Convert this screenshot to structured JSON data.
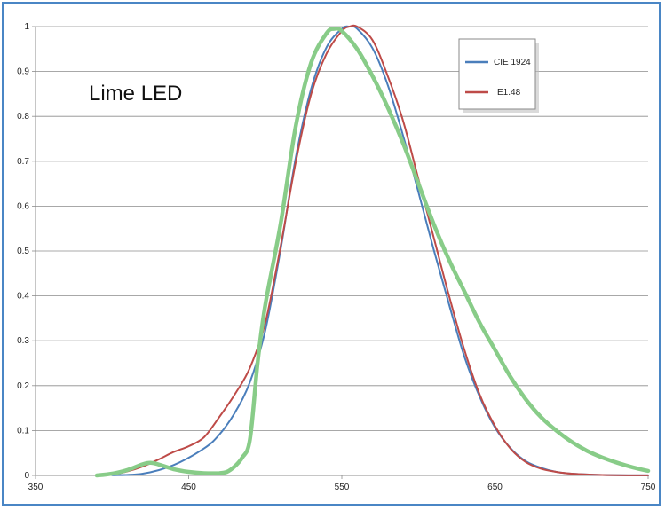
{
  "chart_data": {
    "type": "line",
    "title": "",
    "xlabel": "",
    "ylabel": "",
    "annotation": "Lime LED",
    "xlim": [
      350,
      750
    ],
    "ylim": [
      0,
      1
    ],
    "x_ticks": [
      "350",
      "450",
      "550",
      "650",
      "750"
    ],
    "y_ticks": [
      "0",
      "0.1",
      "0.2",
      "0.3",
      "0.4",
      "0.5",
      "0.6",
      "0.7",
      "0.8",
      "0.9",
      "1"
    ],
    "grid": "horizontal",
    "legend_position": "top-right",
    "series": [
      {
        "name": "CIE 1924",
        "color": "#4a7ebb",
        "x": [
          400,
          420,
          440,
          460,
          470,
          480,
          490,
          500,
          510,
          520,
          530,
          540,
          550,
          555,
          560,
          570,
          580,
          590,
          600,
          610,
          620,
          630,
          640,
          650,
          660,
          670,
          680,
          690,
          700,
          720,
          750
        ],
        "y": [
          0.0004,
          0.004,
          0.023,
          0.06,
          0.091,
          0.139,
          0.208,
          0.323,
          0.503,
          0.71,
          0.862,
          0.954,
          0.995,
          1.0,
          0.995,
          0.952,
          0.87,
          0.757,
          0.631,
          0.503,
          0.381,
          0.265,
          0.175,
          0.107,
          0.061,
          0.032,
          0.017,
          0.008,
          0.004,
          0.001,
          0.0001
        ]
      },
      {
        "name": "E1.48",
        "color": "#be4b48",
        "x": [
          400,
          410,
          420,
          430,
          440,
          450,
          460,
          470,
          480,
          490,
          500,
          510,
          520,
          530,
          540,
          550,
          555,
          560,
          570,
          580,
          590,
          600,
          610,
          620,
          630,
          640,
          650,
          660,
          670,
          680,
          690,
          700,
          720,
          750
        ],
        "y": [
          0.002,
          0.009,
          0.02,
          0.035,
          0.052,
          0.065,
          0.085,
          0.13,
          0.18,
          0.24,
          0.34,
          0.51,
          0.7,
          0.85,
          0.94,
          0.99,
          1.0,
          1.0,
          0.97,
          0.89,
          0.79,
          0.66,
          0.53,
          0.4,
          0.28,
          0.18,
          0.11,
          0.06,
          0.03,
          0.015,
          0.008,
          0.004,
          0.001,
          0.0001
        ]
      },
      {
        "name": "",
        "color": "#88cc88",
        "x": [
          390,
          400,
          410,
          420,
          425,
          430,
          440,
          450,
          460,
          470,
          475,
          480,
          485,
          490,
          495,
          500,
          510,
          520,
          530,
          540,
          545,
          550,
          560,
          570,
          580,
          590,
          600,
          610,
          620,
          630,
          640,
          650,
          660,
          670,
          680,
          690,
          700,
          710,
          720,
          730,
          740,
          750
        ],
        "y": [
          0.0,
          0.004,
          0.012,
          0.025,
          0.028,
          0.025,
          0.014,
          0.008,
          0.005,
          0.005,
          0.008,
          0.02,
          0.04,
          0.08,
          0.25,
          0.38,
          0.56,
          0.78,
          0.92,
          0.985,
          0.995,
          0.99,
          0.95,
          0.89,
          0.82,
          0.74,
          0.65,
          0.56,
          0.48,
          0.41,
          0.34,
          0.28,
          0.22,
          0.17,
          0.13,
          0.1,
          0.075,
          0.055,
          0.04,
          0.028,
          0.018,
          0.01
        ]
      }
    ]
  }
}
